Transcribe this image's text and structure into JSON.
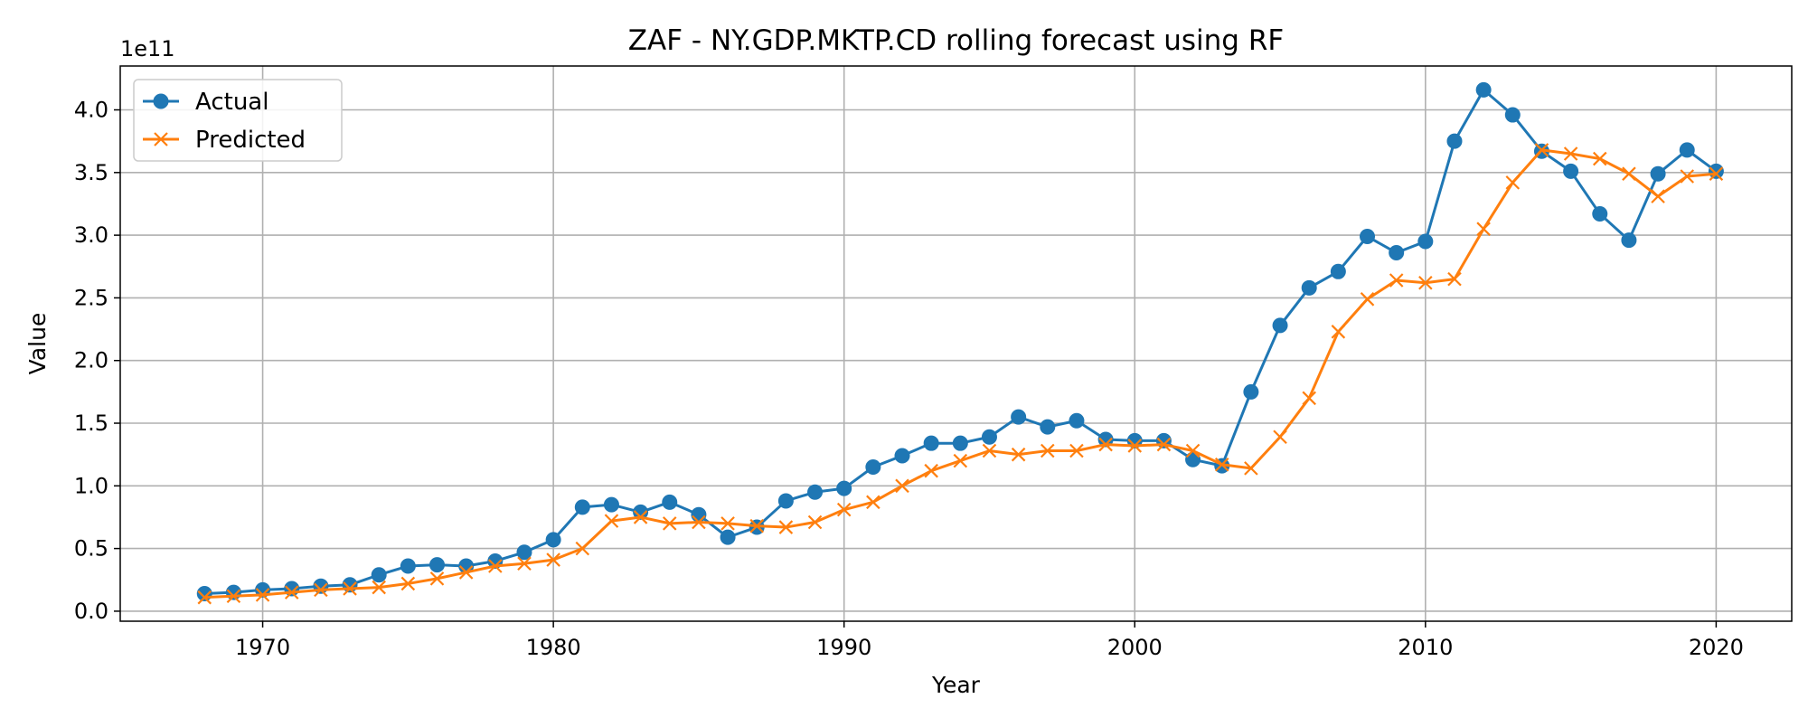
{
  "chart_data": {
    "type": "line",
    "title": "ZAF - NY.GDP.MKTP.CD rolling forecast using RF",
    "xlabel": "Year",
    "ylabel": "Value",
    "y_offset_text": "1e11",
    "xlim": [
      1965.1,
      2022.6
    ],
    "ylim": [
      -0.08,
      4.35
    ],
    "x_ticks": [
      1970,
      1980,
      1990,
      2000,
      2010,
      2020
    ],
    "x_tick_labels": [
      "1970",
      "1980",
      "1990",
      "2000",
      "2010",
      "2020"
    ],
    "y_ticks": [
      0.0,
      0.5,
      1.0,
      1.5,
      2.0,
      2.5,
      3.0,
      3.5,
      4.0
    ],
    "y_tick_labels": [
      "0.0",
      "0.5",
      "1.0",
      "1.5",
      "2.0",
      "2.5",
      "3.0",
      "3.5",
      "4.0"
    ],
    "y_unit_multiplier": 100000000000.0,
    "grid": true,
    "legend_position": "upper-left",
    "x": [
      1968,
      1969,
      1970,
      1971,
      1972,
      1973,
      1974,
      1975,
      1976,
      1977,
      1978,
      1979,
      1980,
      1981,
      1982,
      1983,
      1984,
      1985,
      1986,
      1987,
      1988,
      1989,
      1990,
      1991,
      1992,
      1993,
      1994,
      1995,
      1996,
      1997,
      1998,
      1999,
      2000,
      2001,
      2002,
      2003,
      2004,
      2005,
      2006,
      2007,
      2008,
      2009,
      2010,
      2011,
      2012,
      2013,
      2014,
      2015,
      2016,
      2017,
      2018,
      2019,
      2020
    ],
    "series": [
      {
        "name": "Actual",
        "color": "#1f77b4",
        "marker": "circle",
        "values": [
          0.14,
          0.15,
          0.17,
          0.18,
          0.2,
          0.21,
          0.29,
          0.36,
          0.37,
          0.36,
          0.4,
          0.47,
          0.57,
          0.83,
          0.85,
          0.79,
          0.87,
          0.77,
          0.59,
          0.67,
          0.88,
          0.95,
          0.98,
          1.15,
          1.24,
          1.34,
          1.34,
          1.39,
          1.55,
          1.47,
          1.52,
          1.37,
          1.36,
          1.36,
          1.21,
          1.16,
          1.75,
          2.28,
          2.58,
          2.71,
          2.99,
          2.86,
          2.95,
          3.75,
          4.16,
          3.96,
          3.67,
          3.51,
          3.17,
          2.96,
          3.49,
          3.68,
          3.51
        ]
      },
      {
        "name": "Predicted",
        "color": "#ff7f0e",
        "marker": "x",
        "values": [
          0.11,
          0.12,
          0.13,
          0.15,
          0.17,
          0.18,
          0.19,
          0.22,
          0.26,
          0.31,
          0.36,
          0.38,
          0.41,
          0.5,
          0.72,
          0.75,
          0.7,
          0.71,
          0.7,
          0.68,
          0.67,
          0.71,
          0.81,
          0.87,
          1.0,
          1.12,
          1.2,
          1.28,
          1.25,
          1.28,
          1.28,
          1.33,
          1.32,
          1.33,
          1.28,
          1.17,
          1.14,
          1.39,
          1.7,
          2.23,
          2.49,
          2.64,
          2.62,
          2.65,
          3.05,
          3.42,
          3.68,
          3.65,
          3.61,
          3.49,
          3.31,
          3.47,
          3.49
        ]
      }
    ]
  }
}
